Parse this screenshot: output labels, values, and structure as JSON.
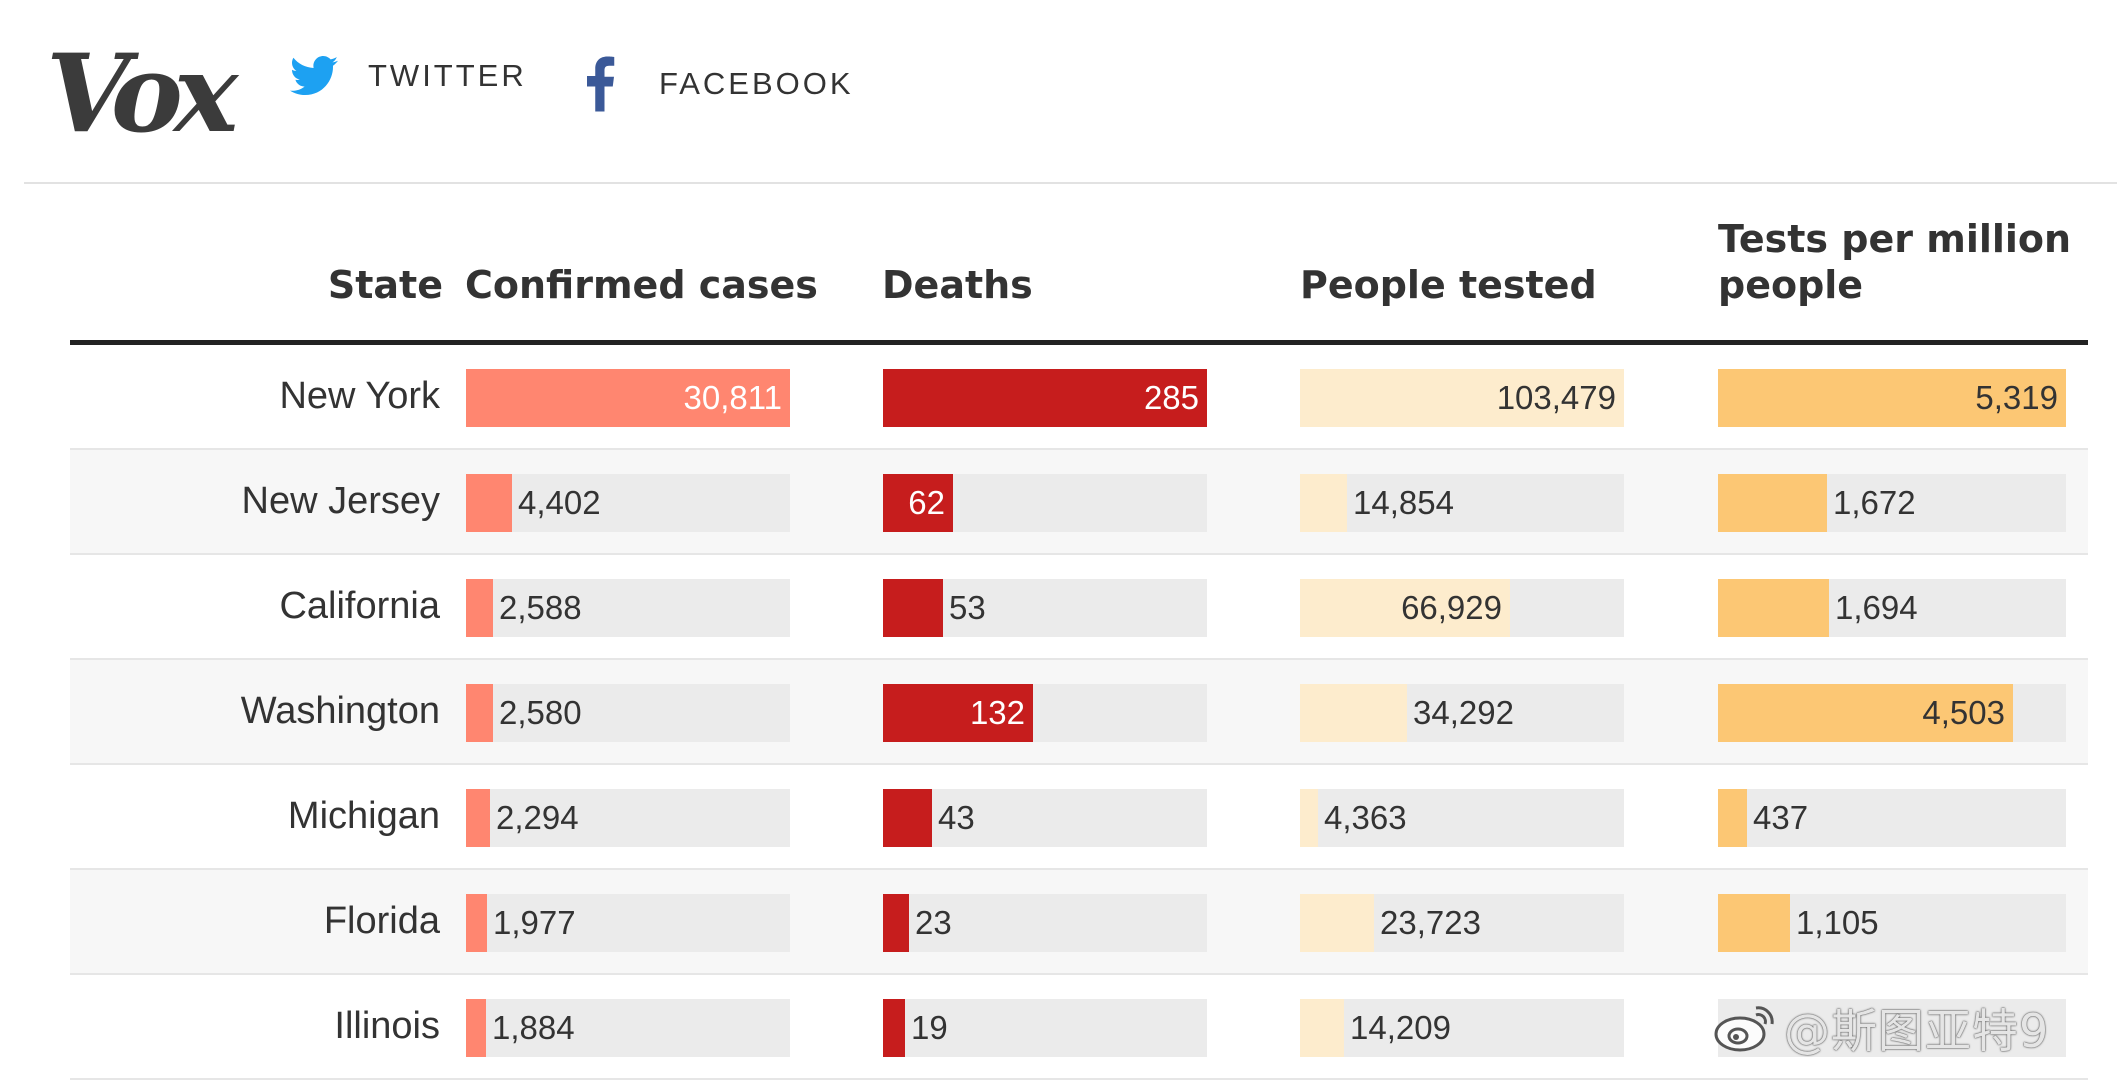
{
  "header": {
    "logo": "Vox",
    "twitter_label": "TWITTER",
    "facebook_label": "FACEBOOK",
    "colors": {
      "twitter": "#1da1f2",
      "facebook": "#3b5998",
      "logo": "#3b3b3b"
    }
  },
  "chart_data": {
    "type": "table",
    "title": "",
    "columns": [
      "State",
      "Confirmed cases",
      "Deaths",
      "People tested",
      "Tests per million people"
    ],
    "rows": [
      {
        "state": "New York",
        "confirmed": 30811,
        "deaths": 285,
        "tested": 103479,
        "per_million": 5319
      },
      {
        "state": "New Jersey",
        "confirmed": 4402,
        "deaths": 62,
        "tested": 14854,
        "per_million": 1672
      },
      {
        "state": "California",
        "confirmed": 2588,
        "deaths": 53,
        "tested": 66929,
        "per_million": 1694
      },
      {
        "state": "Washington",
        "confirmed": 2580,
        "deaths": 132,
        "tested": 34292,
        "per_million": 4503
      },
      {
        "state": "Michigan",
        "confirmed": 2294,
        "deaths": 43,
        "tested": 4363,
        "per_million": 437
      },
      {
        "state": "Florida",
        "confirmed": 1977,
        "deaths": 23,
        "tested": 23723,
        "per_million": 1105
      },
      {
        "state": "Illinois",
        "confirmed": 1884,
        "deaths": 19,
        "tested": 14209,
        "per_million": null
      }
    ],
    "colors": {
      "confirmed": "#ff8670",
      "deaths": "#c61d1d",
      "tested": "#fdeccd",
      "per_million": "#fcc774",
      "bar_track": "#ebebeb"
    }
  },
  "table": {
    "headers": {
      "state": "State",
      "confirmed": "Confirmed cases",
      "deaths": "Deaths",
      "tested": "People tested",
      "per_million": "Tests per million people"
    }
  },
  "watermark": "@斯图亚特9"
}
